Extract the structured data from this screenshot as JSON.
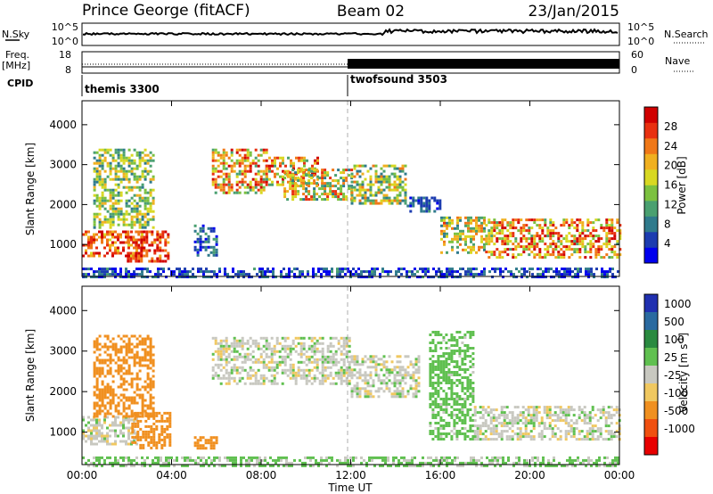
{
  "header": {
    "title": "Prince George (fitACF)",
    "beam": "Beam 02",
    "date": "23/Jan/2015"
  },
  "sky_panel": {
    "left_label": "N.Sky",
    "left_ticks": [
      "10^5",
      "10^0"
    ],
    "right_ticks": [
      "10^5",
      "10^0"
    ],
    "right_label": "N.Search"
  },
  "freq_panel": {
    "left_label_line1": "Freq.",
    "left_label_line2": "[MHz]",
    "left_ticks": [
      "18",
      "8"
    ],
    "right_ticks": [
      "60",
      "0"
    ],
    "right_label": "Nave"
  },
  "cpid": {
    "label": "CPID",
    "modes": [
      {
        "name": "themis 3300",
        "start_hour": 0
      },
      {
        "name": "twofsound 3503",
        "start_hour": 12
      }
    ]
  },
  "chart_data": [
    {
      "type": "heatmap",
      "title": "",
      "xlabel": "Time UT",
      "ylabel": "Slant Range [km]",
      "xlim": [
        0,
        24
      ],
      "ylim": [
        200,
        4600
      ],
      "x_ticks": [
        "00:00",
        "04:00",
        "08:00",
        "12:00",
        "16:00",
        "20:00",
        "00:00"
      ],
      "y_ticks": [
        "1000",
        "2000",
        "3000",
        "4000"
      ],
      "colorbar": {
        "label": "Power [dB]",
        "ticks": [
          "4",
          "8",
          "12",
          "16",
          "20",
          "24",
          "28"
        ],
        "range": [
          0,
          32
        ],
        "colors": [
          "#0000ee",
          "#1c3cb0",
          "#2f7a8c",
          "#4aa070",
          "#7cc140",
          "#d8d822",
          "#f0b020",
          "#f07818",
          "#e83010",
          "#d00000"
        ]
      },
      "echo_regions": [
        {
          "t0": 0.0,
          "t1": 2.7,
          "r0": 700,
          "r1": 1350,
          "v0": 18,
          "v1": 32
        },
        {
          "t0": 0.5,
          "t1": 3.2,
          "r0": 1400,
          "r1": 3400,
          "v0": 8,
          "v1": 22
        },
        {
          "t0": 2.0,
          "t1": 3.8,
          "r0": 600,
          "r1": 1350,
          "v0": 22,
          "v1": 32
        },
        {
          "t0": 5.0,
          "t1": 6.0,
          "r0": 700,
          "r1": 1500,
          "v0": 2,
          "v1": 12
        },
        {
          "t0": 5.8,
          "t1": 8.2,
          "r0": 2300,
          "r1": 3400,
          "v0": 10,
          "v1": 30
        },
        {
          "t0": 8.2,
          "t1": 10.5,
          "r0": 2500,
          "r1": 3200,
          "v0": 10,
          "v1": 30
        },
        {
          "t0": 9.0,
          "t1": 12.0,
          "r0": 2100,
          "r1": 2900,
          "v0": 8,
          "v1": 28
        },
        {
          "t0": 12.0,
          "t1": 14.5,
          "r0": 2000,
          "r1": 3000,
          "v0": 6,
          "v1": 24
        },
        {
          "t0": 14.5,
          "t1": 16.0,
          "r0": 1800,
          "r1": 2200,
          "v0": 2,
          "v1": 10
        },
        {
          "t0": 16.0,
          "t1": 18.0,
          "r0": 800,
          "r1": 1700,
          "v0": 8,
          "v1": 26
        },
        {
          "t0": 18.0,
          "t1": 24.0,
          "r0": 700,
          "r1": 1650,
          "v0": 12,
          "v1": 32
        },
        {
          "t0": 0.0,
          "t1": 24.0,
          "r0": 200,
          "r1": 420,
          "v0": 0,
          "v1": 10
        }
      ]
    },
    {
      "type": "heatmap",
      "title": "",
      "xlabel": "Time UT",
      "ylabel": "Slant Range [km]",
      "xlim": [
        0,
        24
      ],
      "ylim": [
        200,
        4600
      ],
      "x_ticks": [
        "00:00",
        "04:00",
        "08:00",
        "12:00",
        "16:00",
        "20:00",
        "00:00"
      ],
      "y_ticks": [
        "1000",
        "2000",
        "3000",
        "4000"
      ],
      "colorbar": {
        "label": "Velocity [m s-1]",
        "label_main": "Velocity [m s",
        "label_sup": "-1",
        "label_end": "]",
        "ticks": [
          "1000",
          "500",
          "100",
          "25",
          "-25",
          "-100",
          "-500",
          "-1000"
        ],
        "bins": [
          {
            "lo": 1000,
            "color": "#2030b0"
          },
          {
            "lo": 500,
            "color": "#2a6aa0"
          },
          {
            "lo": 100,
            "color": "#2a8a40"
          },
          {
            "lo": 25,
            "color": "#60c050"
          },
          {
            "lo": -25,
            "color": "#c8c8c0"
          },
          {
            "lo": -100,
            "color": "#f0c860"
          },
          {
            "lo": -500,
            "color": "#f09020"
          },
          {
            "lo": -1000,
            "color": "#f05010"
          },
          {
            "lo": -99999,
            "color": "#e80000"
          }
        ]
      },
      "echo_regions": [
        {
          "t0": 0.0,
          "t1": 2.5,
          "r0": 700,
          "r1": 1400,
          "vel": 0
        },
        {
          "t0": 0.5,
          "t1": 3.2,
          "r0": 1400,
          "r1": 3400,
          "vel": -150
        },
        {
          "t0": 2.2,
          "t1": 3.9,
          "r0": 600,
          "r1": 1500,
          "vel": -300
        },
        {
          "t0": 5.0,
          "t1": 6.0,
          "r0": 600,
          "r1": 900,
          "vel": -300
        },
        {
          "t0": 5.8,
          "t1": 12.0,
          "r0": 2200,
          "r1": 3350,
          "vel": 0
        },
        {
          "t0": 12.0,
          "t1": 15.0,
          "r0": 1900,
          "r1": 2900,
          "vel": 0
        },
        {
          "t0": 15.5,
          "t1": 17.5,
          "r0": 800,
          "r1": 3500,
          "vel": 60
        },
        {
          "t0": 17.5,
          "t1": 24.0,
          "r0": 800,
          "r1": 1650,
          "vel": 0
        },
        {
          "t0": 0.0,
          "t1": 24.0,
          "r0": 200,
          "r1": 400,
          "vel": 40
        }
      ]
    }
  ]
}
